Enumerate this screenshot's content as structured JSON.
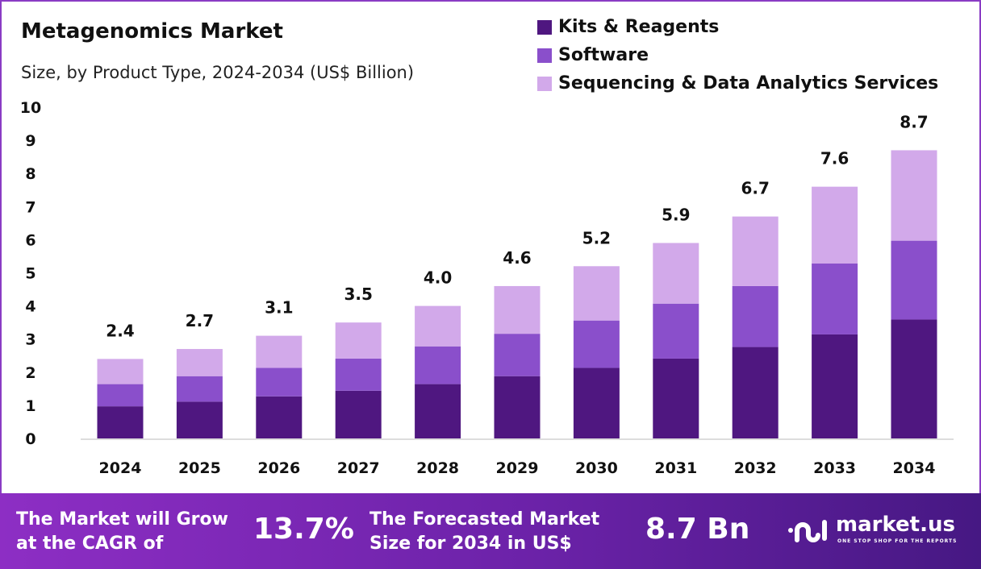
{
  "title": "Metagenomics Market",
  "subtitle": "Size, by Product Type, 2024-2034 (US$ Billion)",
  "colors": {
    "kits": "#4f1780",
    "software": "#8a4fcb",
    "services": "#d2a9ea"
  },
  "chart_data": {
    "type": "bar",
    "stacked": true,
    "title": "Metagenomics Market",
    "subtitle": "Size, by Product Type, 2024-2034 (US$ Billion)",
    "categories": [
      "2024",
      "2025",
      "2026",
      "2027",
      "2028",
      "2029",
      "2030",
      "2031",
      "2032",
      "2033",
      "2034"
    ],
    "series": [
      {
        "name": "Kits & Reagents",
        "values": [
          0.97,
          1.11,
          1.27,
          1.44,
          1.64,
          1.88,
          2.13,
          2.41,
          2.76,
          3.14,
          3.59
        ]
      },
      {
        "name": "Software",
        "values": [
          0.67,
          0.77,
          0.86,
          0.97,
          1.14,
          1.28,
          1.43,
          1.66,
          1.84,
          2.14,
          2.38
        ]
      },
      {
        "name": "Sequencing & Data Analytics Services",
        "values": [
          0.76,
          0.82,
          0.97,
          1.09,
          1.22,
          1.44,
          1.64,
          1.83,
          2.1,
          2.32,
          2.73
        ]
      }
    ],
    "totals": [
      "2.4",
      "2.7",
      "3.1",
      "3.5",
      "4.0",
      "4.6",
      "5.2",
      "5.9",
      "6.7",
      "7.6",
      "8.7"
    ],
    "yticks": [
      "0",
      "1",
      "2",
      "3",
      "4",
      "5",
      "6",
      "7",
      "8",
      "9",
      "10"
    ],
    "ylim": [
      0,
      10
    ],
    "grid": false,
    "legend": "top-right"
  },
  "footer": {
    "cagr_text_1": "The Market will Grow",
    "cagr_text_2": "at the CAGR of",
    "cagr_value": "13.7%",
    "forecast_text_1": "The Forecasted Market",
    "forecast_text_2": "Size for 2034 in US$",
    "forecast_value": "8.7 Bn",
    "brand": "market.us",
    "tagline": "ONE STOP SHOP FOR THE REPORTS"
  }
}
